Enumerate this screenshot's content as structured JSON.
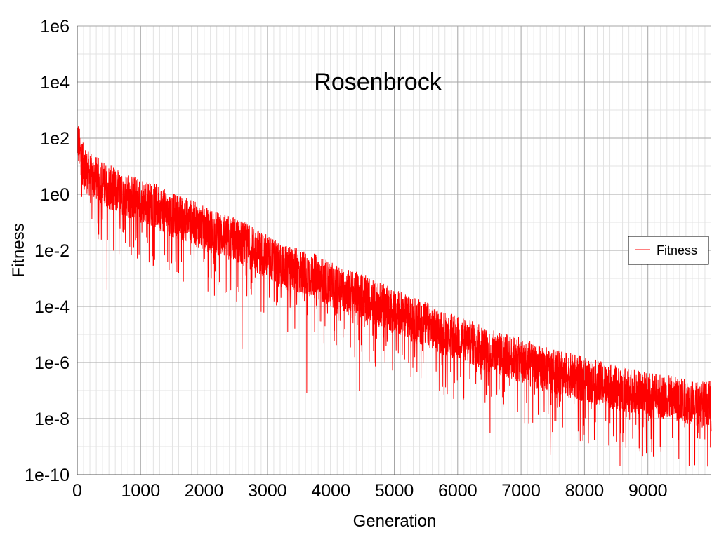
{
  "chart_data": {
    "type": "line",
    "title": "Rosenbrock",
    "xlabel": "Generation",
    "ylabel": "Fitness",
    "xlim": [
      0,
      10000
    ],
    "ylim": [
      1e-10,
      1000000.0
    ],
    "yscale": "log",
    "grid": true,
    "minor_grid": true,
    "x_ticks": [
      0,
      1000,
      2000,
      3000,
      4000,
      5000,
      6000,
      7000,
      8000,
      9000
    ],
    "x_tick_labels": [
      "0",
      "1000",
      "2000",
      "3000",
      "4000",
      "5000",
      "6000",
      "7000",
      "8000",
      "9000"
    ],
    "y_ticks": [
      1e-10,
      1e-08,
      1e-06,
      0.0001,
      0.01,
      1,
      100,
      10000,
      1000000
    ],
    "y_tick_labels": [
      "1e-10",
      "1e-8",
      "1e-6",
      "1e-4",
      "1e-2",
      "1e0",
      "1e2",
      "1e4",
      "1e6"
    ],
    "legend_position": "right",
    "series": [
      {
        "name": "Fitness",
        "color": "#ff0000",
        "x": [
          0,
          50,
          100,
          200,
          300,
          500,
          750,
          1000,
          1250,
          1500,
          1750,
          2000,
          2250,
          2500,
          2750,
          3000,
          3250,
          3500,
          3750,
          4000,
          4250,
          4500,
          4750,
          5000,
          5250,
          5500,
          5750,
          6000,
          6250,
          6500,
          6750,
          7000,
          7250,
          7500,
          7750,
          8000,
          8250,
          8500,
          8750,
          9000,
          9250,
          9500,
          9750,
          10000
        ],
        "y": [
          100,
          20,
          8,
          4,
          3,
          1.5,
          0.8,
          0.5,
          0.3,
          0.15,
          0.1,
          0.05,
          0.03,
          0.02,
          0.01,
          0.005,
          0.002,
          0.0015,
          0.001,
          0.0005,
          0.0003,
          0.0002,
          0.0001,
          6e-05,
          3e-05,
          2e-05,
          1e-05,
          6e-06,
          4e-06,
          2e-06,
          1.5e-06,
          1e-06,
          6e-07,
          4e-07,
          3e-07,
          2e-07,
          1.5e-07,
          1e-07,
          8e-08,
          6e-08,
          5e-08,
          4e-08,
          3e-08,
          3e-08
        ]
      }
    ],
    "spike_minima": [
      {
        "x": 470,
        "y": 0.0004
      },
      {
        "x": 1450,
        "y": 0.002
      },
      {
        "x": 2600,
        "y": 3e-06
      },
      {
        "x": 3620,
        "y": 8e-08
      },
      {
        "x": 4450,
        "y": 1e-07
      },
      {
        "x": 6510,
        "y": 3e-09
      },
      {
        "x": 7460,
        "y": 5e-10
      },
      {
        "x": 8560,
        "y": 2e-10
      },
      {
        "x": 9650,
        "y": 2e-10
      }
    ]
  }
}
